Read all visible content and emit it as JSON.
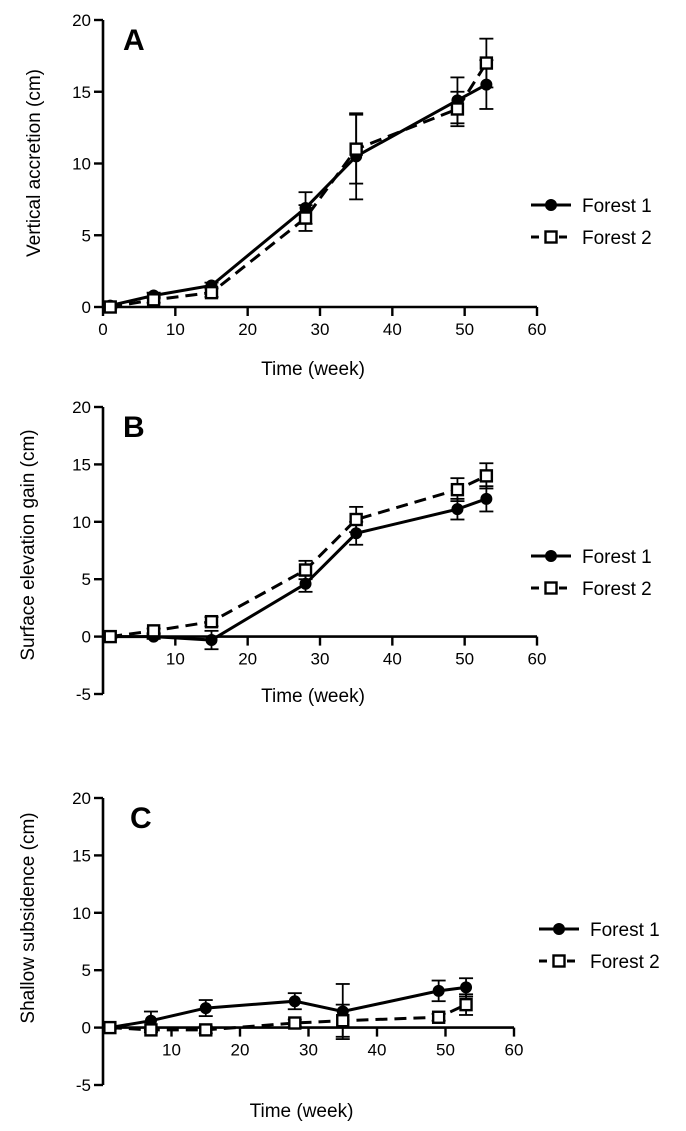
{
  "chart_data": [
    {
      "type": "line",
      "panel_label": "A",
      "xlabel": "Time (week)",
      "ylabel": "Vertical accretion (cm)",
      "xlim": [
        0,
        60
      ],
      "ylim": [
        0,
        20
      ],
      "x_ticks": [
        "0",
        "10",
        "20",
        "30",
        "40",
        "50",
        "60"
      ],
      "y_ticks": [
        "0",
        "5",
        "10",
        "15",
        "20"
      ],
      "grid": false,
      "legend": "right",
      "series": [
        {
          "name": "Forest 1",
          "marker": "filled-circle",
          "line": "solid",
          "x": [
            1,
            7,
            15,
            28,
            35,
            49,
            53
          ],
          "y": [
            0.1,
            0.8,
            1.5,
            6.9,
            10.5,
            14.4,
            15.5
          ],
          "err": [
            0.1,
            0.2,
            0.2,
            1.1,
            3.0,
            1.6,
            1.7
          ]
        },
        {
          "name": "Forest 2",
          "marker": "open-square",
          "line": "dashed",
          "x": [
            1,
            7,
            15,
            28,
            35,
            49,
            53
          ],
          "y": [
            0.0,
            0.5,
            1.0,
            6.2,
            11.0,
            13.8,
            17.0
          ],
          "err": [
            0.1,
            0.2,
            0.3,
            0.9,
            2.4,
            1.2,
            1.7
          ]
        }
      ]
    },
    {
      "type": "line",
      "panel_label": "B",
      "xlabel": "Time (week)",
      "ylabel": "Surface elevation gain (cm)",
      "xlim": [
        0,
        60
      ],
      "ylim": [
        -5,
        20
      ],
      "x_ticks": [
        "10",
        "20",
        "30",
        "40",
        "50",
        "60"
      ],
      "y_ticks": [
        "-5",
        "0",
        "5",
        "10",
        "15",
        "20"
      ],
      "grid": false,
      "legend": "right",
      "series": [
        {
          "name": "Forest 1",
          "marker": "filled-circle",
          "line": "solid",
          "x": [
            1,
            7,
            15,
            28,
            35,
            49,
            53
          ],
          "y": [
            0.0,
            0.0,
            -0.3,
            4.6,
            9.0,
            11.1,
            12.0
          ],
          "err": [
            0.1,
            0.2,
            0.8,
            0.7,
            1.0,
            0.9,
            1.1
          ]
        },
        {
          "name": "Forest 2",
          "marker": "open-square",
          "line": "dashed",
          "x": [
            1,
            7,
            15,
            28,
            35,
            49,
            53
          ],
          "y": [
            0.0,
            0.5,
            1.3,
            5.8,
            10.2,
            12.8,
            14.0
          ],
          "err": [
            0.1,
            0.2,
            0.4,
            0.8,
            1.1,
            1.0,
            1.1
          ]
        }
      ]
    },
    {
      "type": "line",
      "panel_label": "C",
      "xlabel": "Time (week)",
      "ylabel": "Shallow subsidence (cm)",
      "xlim": [
        0,
        60
      ],
      "ylim": [
        -5,
        20
      ],
      "x_ticks": [
        "10",
        "20",
        "30",
        "40",
        "50",
        "60"
      ],
      "y_ticks": [
        "-5",
        "0",
        "5",
        "10",
        "15",
        "20"
      ],
      "grid": false,
      "legend": "right",
      "series": [
        {
          "name": "Forest 1",
          "marker": "filled-circle",
          "line": "solid",
          "x": [
            1,
            7,
            15,
            28,
            35,
            49,
            53
          ],
          "y": [
            0.0,
            0.6,
            1.7,
            2.3,
            1.4,
            3.2,
            3.5
          ],
          "err": [
            0.1,
            0.8,
            0.7,
            0.7,
            2.4,
            0.9,
            0.8
          ]
        },
        {
          "name": "Forest 2",
          "marker": "open-square",
          "line": "dashed",
          "x": [
            1,
            7,
            15,
            28,
            35,
            49,
            53
          ],
          "y": [
            0.0,
            -0.2,
            -0.2,
            0.4,
            0.6,
            0.9,
            2.0
          ],
          "err": [
            0.1,
            0.2,
            0.3,
            0.3,
            1.4,
            0.3,
            0.9
          ]
        }
      ]
    }
  ]
}
